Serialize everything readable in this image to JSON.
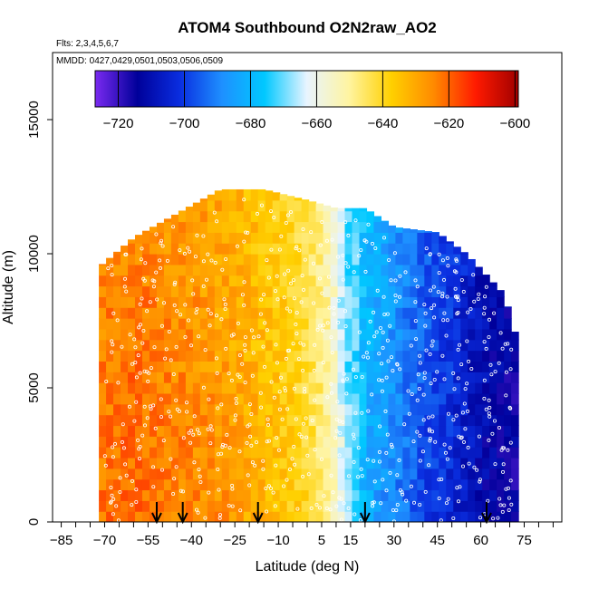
{
  "chart_data": {
    "type": "heatmap",
    "title": "ATOM4 Southbound O2N2raw_AO2",
    "flights_label": "Flts: 2,3,4,5,6,7",
    "dates_label": "MMDD: 0427,0429,0501,0503,0506,0509",
    "xlabel": "Latitude (deg N)",
    "ylabel": "Altitude (m)",
    "xlim": [
      -88,
      88
    ],
    "ylim": [
      0,
      17500
    ],
    "x_ticks": [
      -85,
      -70,
      -55,
      -40,
      -25,
      -10,
      5,
      15,
      30,
      45,
      60,
      75
    ],
    "y_ticks": [
      0,
      5000,
      10000,
      15000
    ],
    "colorbar": {
      "min": -727,
      "max": -599,
      "ticks": [
        -720,
        -700,
        -680,
        -660,
        -640,
        -620,
        -600
      ],
      "colors": [
        "#7a2af0",
        "#00009a",
        "#0a2ee0",
        "#1e90ff",
        "#00c8ff",
        "#e8f4ff",
        "#fff4a0",
        "#ffd000",
        "#ff8a00",
        "#ff1a00",
        "#a00000"
      ]
    },
    "ceiling_profile": [
      {
        "lat": -72,
        "top_alt": 9500
      },
      {
        "lat": -60,
        "top_alt": 10600
      },
      {
        "lat": -50,
        "top_alt": 11200
      },
      {
        "lat": -40,
        "top_alt": 11800
      },
      {
        "lat": -30,
        "top_alt": 12400
      },
      {
        "lat": -15,
        "top_alt": 12400
      },
      {
        "lat": 0,
        "top_alt": 12000
      },
      {
        "lat": 10,
        "top_alt": 11700
      },
      {
        "lat": 20,
        "top_alt": 11700
      },
      {
        "lat": 30,
        "top_alt": 11000
      },
      {
        "lat": 45,
        "top_alt": 10800
      },
      {
        "lat": 55,
        "top_alt": 10000
      },
      {
        "lat": 68,
        "top_alt": 8500
      },
      {
        "lat": 72,
        "top_alt": 7000
      }
    ],
    "latitudinal_mean": [
      {
        "lat": -72,
        "value": -622
      },
      {
        "lat": -60,
        "value": -620
      },
      {
        "lat": -50,
        "value": -622
      },
      {
        "lat": -40,
        "value": -624
      },
      {
        "lat": -30,
        "value": -626
      },
      {
        "lat": -20,
        "value": -630
      },
      {
        "lat": -10,
        "value": -634
      },
      {
        "lat": 0,
        "value": -640
      },
      {
        "lat": 8,
        "value": -650
      },
      {
        "lat": 14,
        "value": -668
      },
      {
        "lat": 20,
        "value": -682
      },
      {
        "lat": 30,
        "value": -690
      },
      {
        "lat": 40,
        "value": -698
      },
      {
        "lat": 50,
        "value": -704
      },
      {
        "lat": 60,
        "value": -712
      },
      {
        "lat": 70,
        "value": -716
      }
    ],
    "arrows_lat": [
      -52,
      -43,
      -17,
      20,
      62
    ]
  }
}
